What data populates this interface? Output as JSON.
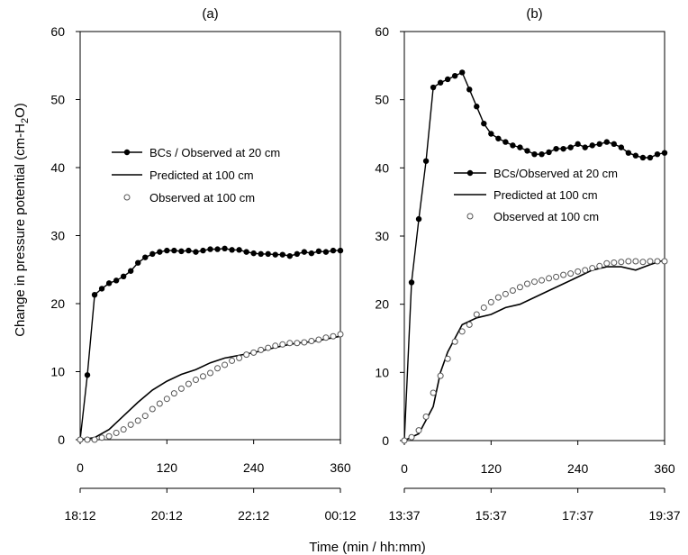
{
  "figure": {
    "xlabel": "Time (min  / hh:mm)",
    "ylabel_main": "Change in pressure potential (cm-H",
    "ylabel_sub": "2",
    "ylabel_end": "O)"
  },
  "chart_data": [
    {
      "type": "line",
      "title": "(a)",
      "xlim": [
        0,
        360
      ],
      "ylim": [
        0,
        60
      ],
      "xticks": [
        0,
        120,
        240,
        360
      ],
      "yticks": [
        0,
        10,
        20,
        30,
        40,
        50,
        60
      ],
      "time_tick_labels": [
        "18:12",
        "20:12",
        "22:12",
        "00:12"
      ],
      "legend_position": "upper-left",
      "series": [
        {
          "name": "BCs / Observed at 20 cm",
          "style": "line-filled-markers",
          "x": [
            0,
            10,
            20,
            30,
            40,
            50,
            60,
            70,
            80,
            90,
            100,
            110,
            120,
            130,
            140,
            150,
            160,
            170,
            180,
            190,
            200,
            210,
            220,
            230,
            240,
            250,
            260,
            270,
            280,
            290,
            300,
            310,
            320,
            330,
            340,
            350,
            360
          ],
          "y": [
            0,
            9.5,
            21.3,
            22.2,
            23.0,
            23.4,
            24.0,
            24.8,
            26.0,
            26.8,
            27.3,
            27.6,
            27.8,
            27.8,
            27.7,
            27.8,
            27.6,
            27.8,
            28.0,
            28.0,
            28.1,
            27.9,
            27.9,
            27.6,
            27.4,
            27.3,
            27.3,
            27.2,
            27.2,
            27.0,
            27.3,
            27.6,
            27.4,
            27.7,
            27.6,
            27.8,
            27.8
          ]
        },
        {
          "name": "Predicted at 100 cm",
          "style": "line",
          "x": [
            0,
            20,
            40,
            60,
            80,
            100,
            120,
            140,
            160,
            180,
            200,
            220,
            240,
            260,
            280,
            300,
            320,
            340,
            360
          ],
          "y": [
            0,
            0.3,
            1.5,
            3.5,
            5.5,
            7.3,
            8.6,
            9.6,
            10.3,
            11.3,
            12.0,
            12.4,
            12.8,
            13.3,
            13.8,
            14.2,
            14.4,
            14.8,
            15.2
          ]
        },
        {
          "name": "Observed at 100 cm",
          "style": "open-markers",
          "x": [
            0,
            10,
            20,
            30,
            40,
            50,
            60,
            70,
            80,
            90,
            100,
            110,
            120,
            130,
            140,
            150,
            160,
            170,
            180,
            190,
            200,
            210,
            220,
            230,
            240,
            250,
            260,
            270,
            280,
            290,
            300,
            310,
            320,
            330,
            340,
            350,
            360
          ],
          "y": [
            0,
            0,
            0,
            0.3,
            0.5,
            1.0,
            1.5,
            2.2,
            2.8,
            3.5,
            4.5,
            5.3,
            6.0,
            6.8,
            7.5,
            8.2,
            8.8,
            9.3,
            9.8,
            10.5,
            11.0,
            11.6,
            12.0,
            12.5,
            12.8,
            13.2,
            13.5,
            13.8,
            14.0,
            14.2,
            14.2,
            14.3,
            14.5,
            14.7,
            15.0,
            15.2,
            15.5
          ]
        }
      ]
    },
    {
      "type": "line",
      "title": "(b)",
      "xlim": [
        0,
        360
      ],
      "ylim": [
        0,
        60
      ],
      "xticks": [
        0,
        120,
        240,
        360
      ],
      "yticks": [
        0,
        10,
        20,
        30,
        40,
        50,
        60
      ],
      "time_tick_labels": [
        "13:37",
        "15:37",
        "17:37",
        "19:37"
      ],
      "legend_position": "center-right",
      "series": [
        {
          "name": "BCs/Observed at 20 cm",
          "style": "line-filled-markers",
          "x": [
            0,
            10,
            20,
            30,
            40,
            50,
            60,
            70,
            80,
            90,
            100,
            110,
            120,
            130,
            140,
            150,
            160,
            170,
            180,
            190,
            200,
            210,
            220,
            230,
            240,
            250,
            260,
            270,
            280,
            290,
            300,
            310,
            320,
            330,
            340,
            350,
            360
          ],
          "y": [
            0,
            23.2,
            32.5,
            41.0,
            51.8,
            52.5,
            53.0,
            53.5,
            54.0,
            51.5,
            49.0,
            46.5,
            45.0,
            44.3,
            43.8,
            43.3,
            43.0,
            42.5,
            42.0,
            42.0,
            42.3,
            42.8,
            42.8,
            43.0,
            43.5,
            43.0,
            43.3,
            43.5,
            43.8,
            43.5,
            43.0,
            42.2,
            41.8,
            41.5,
            41.5,
            42.0,
            42.2
          ]
        },
        {
          "name": "Predicted at 100 cm",
          "style": "line",
          "x": [
            0,
            20,
            40,
            50,
            60,
            80,
            100,
            120,
            140,
            160,
            180,
            200,
            220,
            240,
            260,
            280,
            300,
            320,
            340,
            360
          ],
          "y": [
            0,
            1.0,
            5.0,
            10.0,
            13.0,
            17.0,
            18.0,
            18.5,
            19.5,
            20.0,
            21.0,
            22.0,
            23.0,
            24.0,
            25.0,
            25.5,
            25.5,
            25.0,
            25.8,
            26.5
          ]
        },
        {
          "name": "Observed at 100 cm",
          "style": "open-markers",
          "x": [
            0,
            10,
            20,
            30,
            40,
            50,
            60,
            70,
            80,
            90,
            100,
            110,
            120,
            130,
            140,
            150,
            160,
            170,
            180,
            190,
            200,
            210,
            220,
            230,
            240,
            250,
            260,
            270,
            280,
            290,
            300,
            310,
            320,
            330,
            340,
            350,
            360
          ],
          "y": [
            0,
            0.5,
            1.5,
            3.5,
            7.0,
            9.5,
            12.0,
            14.5,
            16.0,
            17.0,
            18.5,
            19.5,
            20.3,
            21.0,
            21.5,
            22.0,
            22.5,
            23.0,
            23.3,
            23.5,
            23.8,
            24.0,
            24.3,
            24.5,
            24.8,
            25.0,
            25.3,
            25.6,
            26.0,
            26.1,
            26.2,
            26.3,
            26.3,
            26.2,
            26.3,
            26.3,
            26.3
          ]
        }
      ]
    }
  ]
}
